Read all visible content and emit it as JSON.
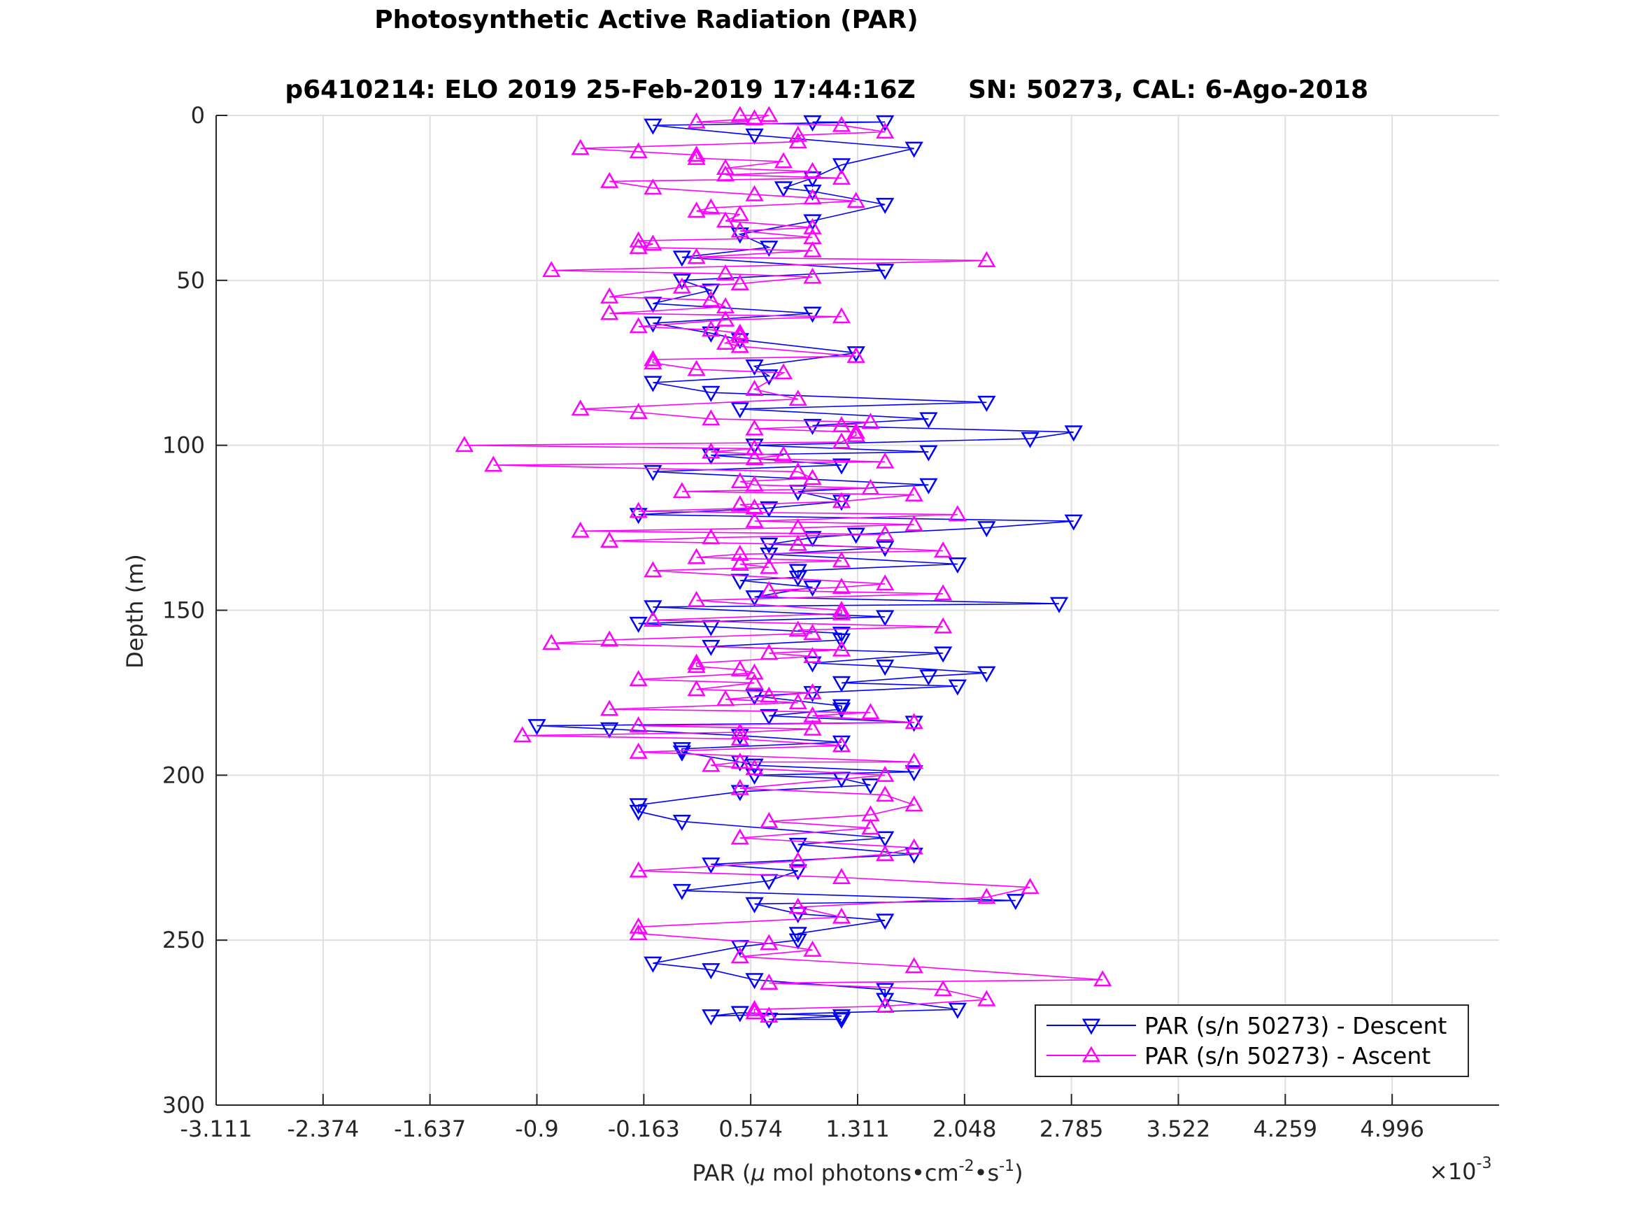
{
  "chart_data": {
    "type": "line",
    "title": "Photosynthetic Active Radiation (PAR)",
    "subtitle_left": "p6410214: ELO 2019 25-Feb-2019 17:44:16Z",
    "subtitle_right": "SN: 50273, CAL: 6-Ago-2018",
    "xlabel": {
      "prefix": "PAR (",
      "mu": "μ",
      "mid1": " mol photons",
      "bullet1": "•",
      "cm": "cm",
      "exp1": "-2",
      "bullet2": "•",
      "s": "s",
      "exp2": "-1",
      "suffix": ")"
    },
    "x_multiplier": {
      "base": "×10",
      "exponent": "-3"
    },
    "ylabel": "Depth (m)",
    "x_scale": 0.001,
    "xlim": [
      -3.111,
      5.733
    ],
    "ylim": [
      0,
      300
    ],
    "y_reversed": true,
    "grid": true,
    "legend_position": "bottom-right",
    "x_ticks": [
      -3.111,
      -2.374,
      -1.637,
      -0.9,
      -0.163,
      0.574,
      1.311,
      2.048,
      2.785,
      3.522,
      4.259,
      4.996
    ],
    "x_tick_labels": [
      "-3.111",
      "-2.374",
      "-1.637",
      "-0.9",
      "-0.163",
      "0.574",
      "1.311",
      "2.048",
      "2.785",
      "3.522",
      "4.259",
      "4.996"
    ],
    "y_ticks": [
      0,
      50,
      100,
      150,
      200,
      250,
      300
    ],
    "y_tick_labels": [
      "0",
      "50",
      "100",
      "150",
      "200",
      "250",
      "300"
    ],
    "series": [
      {
        "name": "PAR (s/n 50273) - Descent",
        "color": "#0000ff",
        "marker": "triangle-down",
        "points": [
          [
            1.0,
            2
          ],
          [
            1.5,
            2
          ],
          [
            -0.1,
            3
          ],
          [
            0.6,
            6
          ],
          [
            1.7,
            10
          ],
          [
            1.2,
            15
          ],
          [
            1.0,
            19
          ],
          [
            0.8,
            22
          ],
          [
            1.0,
            23
          ],
          [
            1.5,
            27
          ],
          [
            1.0,
            32
          ],
          [
            0.5,
            36
          ],
          [
            0.7,
            40
          ],
          [
            0.1,
            43
          ],
          [
            1.5,
            47
          ],
          [
            0.1,
            50
          ],
          [
            0.3,
            53
          ],
          [
            -0.1,
            57
          ],
          [
            1.0,
            60
          ],
          [
            -0.1,
            63
          ],
          [
            0.3,
            66
          ],
          [
            0.5,
            68
          ],
          [
            1.3,
            72
          ],
          [
            0.6,
            76
          ],
          [
            0.7,
            79
          ],
          [
            -0.1,
            81
          ],
          [
            0.3,
            84
          ],
          [
            2.2,
            87
          ],
          [
            0.5,
            89
          ],
          [
            1.8,
            92
          ],
          [
            1.0,
            94
          ],
          [
            2.8,
            96
          ],
          [
            2.5,
            98
          ],
          [
            0.6,
            100
          ],
          [
            1.8,
            102
          ],
          [
            0.3,
            103
          ],
          [
            1.2,
            106
          ],
          [
            -0.1,
            108
          ],
          [
            1.8,
            112
          ],
          [
            0.9,
            114
          ],
          [
            1.2,
            117
          ],
          [
            0.7,
            119
          ],
          [
            -0.2,
            121
          ],
          [
            2.8,
            123
          ],
          [
            2.2,
            125
          ],
          [
            1.3,
            127
          ],
          [
            1.0,
            128
          ],
          [
            0.7,
            130
          ],
          [
            1.5,
            131
          ],
          [
            0.7,
            133
          ],
          [
            2.0,
            136
          ],
          [
            0.9,
            138
          ],
          [
            0.9,
            140
          ],
          [
            0.5,
            141
          ],
          [
            1.0,
            143
          ],
          [
            0.6,
            146
          ],
          [
            2.7,
            148
          ],
          [
            -0.1,
            149
          ],
          [
            1.5,
            152
          ],
          [
            -0.2,
            154
          ],
          [
            0.3,
            155
          ],
          [
            1.2,
            157
          ],
          [
            1.2,
            159
          ],
          [
            0.3,
            161
          ],
          [
            1.9,
            163
          ],
          [
            1.0,
            166
          ],
          [
            1.5,
            167
          ],
          [
            2.2,
            169
          ],
          [
            1.8,
            170
          ],
          [
            1.2,
            172
          ],
          [
            2.0,
            173
          ],
          [
            1.0,
            175
          ],
          [
            0.6,
            176
          ],
          [
            1.2,
            179
          ],
          [
            1.2,
            180
          ],
          [
            0.7,
            182
          ],
          [
            1.7,
            184
          ],
          [
            -0.9,
            185
          ],
          [
            -0.4,
            186
          ],
          [
            0.5,
            188
          ],
          [
            1.2,
            190
          ],
          [
            0.1,
            192
          ],
          [
            0.1,
            193
          ],
          [
            0.5,
            196
          ],
          [
            0.6,
            197
          ],
          [
            1.7,
            199
          ],
          [
            0.6,
            200
          ],
          [
            1.2,
            201
          ],
          [
            1.4,
            203
          ],
          [
            0.5,
            205
          ],
          [
            -0.2,
            209
          ],
          [
            -0.2,
            211
          ],
          [
            0.1,
            214
          ],
          [
            1.5,
            219
          ],
          [
            0.9,
            221
          ],
          [
            1.7,
            224
          ],
          [
            0.3,
            227
          ],
          [
            0.9,
            229
          ],
          [
            0.7,
            232
          ],
          [
            0.1,
            235
          ],
          [
            2.4,
            238
          ],
          [
            0.6,
            239
          ],
          [
            0.9,
            242
          ],
          [
            1.5,
            244
          ],
          [
            0.9,
            248
          ],
          [
            0.9,
            250
          ],
          [
            0.5,
            252
          ],
          [
            -0.1,
            257
          ],
          [
            0.3,
            259
          ],
          [
            0.6,
            262
          ],
          [
            1.5,
            265
          ],
          [
            1.5,
            268
          ],
          [
            2.0,
            271
          ],
          [
            0.3,
            273
          ],
          [
            0.5,
            272
          ],
          [
            1.2,
            273
          ],
          [
            0.7,
            274
          ],
          [
            1.2,
            274
          ]
        ]
      },
      {
        "name": "PAR (s/n 50273) - Ascent",
        "color": "#ff00ff",
        "marker": "triangle-up",
        "points": [
          [
            0.5,
            0
          ],
          [
            0.7,
            0
          ],
          [
            0.6,
            1
          ],
          [
            0.2,
            2
          ],
          [
            1.2,
            3
          ],
          [
            1.5,
            5
          ],
          [
            0.9,
            6
          ],
          [
            0.9,
            8
          ],
          [
            -0.6,
            10
          ],
          [
            -0.2,
            11
          ],
          [
            0.2,
            12
          ],
          [
            0.2,
            13
          ],
          [
            0.8,
            14
          ],
          [
            0.4,
            16
          ],
          [
            1.0,
            17
          ],
          [
            0.4,
            18
          ],
          [
            1.2,
            19
          ],
          [
            -0.4,
            20
          ],
          [
            -0.1,
            22
          ],
          [
            0.6,
            24
          ],
          [
            1.0,
            25
          ],
          [
            1.3,
            26
          ],
          [
            0.3,
            28
          ],
          [
            0.2,
            29
          ],
          [
            0.5,
            30
          ],
          [
            0.4,
            32
          ],
          [
            1.0,
            34
          ],
          [
            0.5,
            35
          ],
          [
            1.0,
            37
          ],
          [
            -0.2,
            38
          ],
          [
            -0.1,
            39
          ],
          [
            -0.2,
            40
          ],
          [
            1.0,
            41
          ],
          [
            0.2,
            43
          ],
          [
            2.2,
            44
          ],
          [
            -0.8,
            47
          ],
          [
            0.4,
            48
          ],
          [
            1.0,
            49
          ],
          [
            0.5,
            51
          ],
          [
            0.1,
            52
          ],
          [
            -0.4,
            55
          ],
          [
            0.3,
            56
          ],
          [
            0.4,
            58
          ],
          [
            -0.4,
            60
          ],
          [
            1.2,
            61
          ],
          [
            0.4,
            62
          ],
          [
            -0.2,
            64
          ],
          [
            0.3,
            65
          ],
          [
            0.5,
            66
          ],
          [
            0.5,
            67
          ],
          [
            0.4,
            69
          ],
          [
            0.5,
            70
          ],
          [
            1.3,
            73
          ],
          [
            -0.1,
            74
          ],
          [
            -0.1,
            75
          ],
          [
            0.2,
            77
          ],
          [
            0.8,
            78
          ],
          [
            0.6,
            83
          ],
          [
            0.9,
            86
          ],
          [
            -0.6,
            89
          ],
          [
            -0.2,
            90
          ],
          [
            0.3,
            92
          ],
          [
            1.4,
            93
          ],
          [
            1.2,
            94
          ],
          [
            0.6,
            95
          ],
          [
            1.3,
            96
          ],
          [
            1.3,
            97
          ],
          [
            1.2,
            99
          ],
          [
            -1.4,
            100
          ],
          [
            0.6,
            101
          ],
          [
            0.3,
            102
          ],
          [
            0.8,
            103
          ],
          [
            0.6,
            104
          ],
          [
            1.5,
            105
          ],
          [
            -1.2,
            106
          ],
          [
            0.9,
            108
          ],
          [
            1.0,
            110
          ],
          [
            0.5,
            111
          ],
          [
            0.6,
            112
          ],
          [
            1.4,
            113
          ],
          [
            0.1,
            114
          ],
          [
            1.7,
            115
          ],
          [
            1.2,
            117
          ],
          [
            0.5,
            118
          ],
          [
            0.6,
            119
          ],
          [
            -0.2,
            120
          ],
          [
            2.0,
            121
          ],
          [
            0.6,
            123
          ],
          [
            1.7,
            124
          ],
          [
            0.9,
            125
          ],
          [
            -0.6,
            126
          ],
          [
            1.5,
            127
          ],
          [
            0.3,
            128
          ],
          [
            -0.4,
            129
          ],
          [
            0.9,
            130
          ],
          [
            1.9,
            132
          ],
          [
            0.5,
            133
          ],
          [
            0.2,
            134
          ],
          [
            1.2,
            135
          ],
          [
            0.5,
            136
          ],
          [
            0.7,
            137
          ],
          [
            -0.1,
            138
          ],
          [
            1.5,
            142
          ],
          [
            1.2,
            143
          ],
          [
            0.7,
            144
          ],
          [
            1.9,
            145
          ],
          [
            0.2,
            147
          ],
          [
            1.2,
            150
          ],
          [
            1.2,
            151
          ],
          [
            -0.1,
            153
          ],
          [
            1.9,
            155
          ],
          [
            0.9,
            156
          ],
          [
            1.0,
            157
          ],
          [
            -0.4,
            159
          ],
          [
            -0.8,
            160
          ],
          [
            1.2,
            162
          ],
          [
            0.7,
            163
          ],
          [
            1.0,
            164
          ],
          [
            0.2,
            166
          ],
          [
            0.2,
            167
          ],
          [
            0.5,
            168
          ],
          [
            0.6,
            169
          ],
          [
            -0.2,
            171
          ],
          [
            0.6,
            172
          ],
          [
            0.2,
            174
          ],
          [
            1.0,
            175
          ],
          [
            0.7,
            176
          ],
          [
            0.4,
            177
          ],
          [
            0.9,
            178
          ],
          [
            -0.4,
            180
          ],
          [
            1.4,
            181
          ],
          [
            1.0,
            182
          ],
          [
            1.7,
            184
          ],
          [
            -0.2,
            185
          ],
          [
            1.0,
            186
          ],
          [
            0.5,
            187
          ],
          [
            -1.0,
            188
          ],
          [
            0.5,
            189
          ],
          [
            1.2,
            191
          ],
          [
            -0.2,
            193
          ],
          [
            1.7,
            196
          ],
          [
            0.5,
            196
          ],
          [
            0.3,
            197
          ],
          [
            0.6,
            198
          ],
          [
            1.5,
            200
          ],
          [
            0.5,
            204
          ],
          [
            1.5,
            206
          ],
          [
            1.7,
            209
          ],
          [
            1.4,
            212
          ],
          [
            0.7,
            214
          ],
          [
            1.4,
            216
          ],
          [
            0.5,
            219
          ],
          [
            1.7,
            222
          ],
          [
            1.5,
            224
          ],
          [
            0.9,
            226
          ],
          [
            -0.2,
            229
          ],
          [
            1.2,
            231
          ],
          [
            2.5,
            234
          ],
          [
            2.2,
            237
          ],
          [
            0.9,
            240
          ],
          [
            1.2,
            243
          ],
          [
            -0.2,
            246
          ],
          [
            -0.2,
            248
          ],
          [
            0.7,
            251
          ],
          [
            1.0,
            253
          ],
          [
            0.5,
            255
          ],
          [
            1.7,
            258
          ],
          [
            3.0,
            262
          ],
          [
            0.7,
            263
          ],
          [
            1.9,
            265
          ],
          [
            2.2,
            268
          ],
          [
            1.5,
            270
          ],
          [
            0.6,
            271
          ],
          [
            0.6,
            272
          ],
          [
            0.7,
            273
          ]
        ]
      }
    ]
  }
}
